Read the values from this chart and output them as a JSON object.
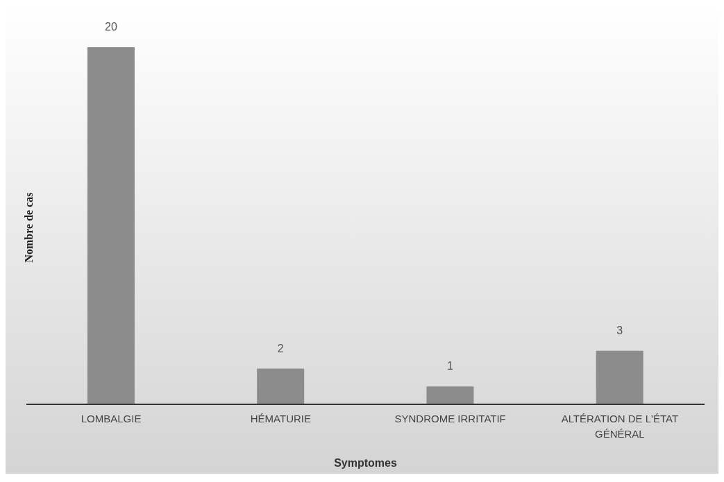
{
  "chart_data": {
    "type": "bar",
    "xlabel": "Symptomes",
    "ylabel": "Nombre de cas",
    "categories": [
      "LOMBALGIE",
      "HÉMATURIE",
      "SYNDROME IRRITATIF",
      "ALTÉRATION DE L'ÉTAT GÉNÉRAL"
    ],
    "values": [
      20,
      2,
      1,
      3
    ],
    "color": "#8c8c8c",
    "data_labels": true,
    "grid": false,
    "legend": false
  }
}
